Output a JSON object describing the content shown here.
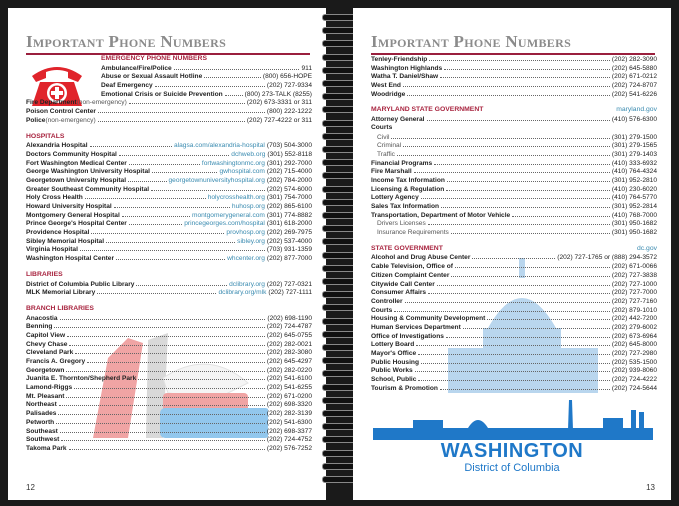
{
  "left_page": {
    "title": "Important Phone Numbers",
    "page_number": "12",
    "sections": [
      {
        "header": "EMERGENCY PHONE NUMBERS",
        "indent_rows": 4,
        "rows": [
          {
            "name": "Ambulance/Fire/Police",
            "phone": "911"
          },
          {
            "name": "Abuse or Sexual Assault Hotline",
            "phone": "(800) 656-HOPE"
          },
          {
            "name": "Deaf Emergency",
            "phone": "(202) 727-9334"
          },
          {
            "name": "Emotional Crisis or Suicide Prevention",
            "phone": "(800) 273-TALK (8255)"
          },
          {
            "name": "Fire Department",
            "sub": " (non-emergency)",
            "phone": "(202) 673-3331 or 311"
          },
          {
            "name": "Poison Control Center",
            "phone": "(800) 222-1222"
          },
          {
            "name": "Police",
            "sub": " (non-emergency)",
            "phone": "(202) 727-4222 or 311"
          }
        ]
      },
      {
        "header": "HOSPITALS",
        "rows": [
          {
            "name": "Alexandria Hospital",
            "url": "alagsa.com/alexandria-hospital",
            "phone": "(703) 504-3000"
          },
          {
            "name": "Doctors Community Hospital",
            "url": "dchweb.org",
            "phone": "(301) 552-8118"
          },
          {
            "name": "Fort Washington Medical Center",
            "url": "fortwashingtonmc.org",
            "phone": "(301) 292-7000"
          },
          {
            "name": "George Washington University Hospital",
            "url": "gwhospital.com",
            "phone": "(202) 715-4000"
          },
          {
            "name": "Georgetown University Hospital",
            "url": "georgetownuniversityhospital.org",
            "phone": "(202) 784-2000"
          },
          {
            "name": "Greater Southeast Community Hospital",
            "phone": "(202) 574-6000"
          },
          {
            "name": "Holy Cross Health",
            "url": "holycrosshealth.org",
            "phone": "(301) 754-7000"
          },
          {
            "name": "Howard University Hospital",
            "url": "huhosp.org",
            "phone": "(202) 865-6100"
          },
          {
            "name": "Montgomery General Hospital",
            "url": "montgomerygeneral.com",
            "phone": "(301) 774-8882"
          },
          {
            "name": "Prince George's Hospital Center",
            "url": "princegeorges.com/hospital",
            "phone": "(301) 618-2000"
          },
          {
            "name": "Providence Hospital",
            "url": "provhosp.org",
            "phone": "(202) 269-7975"
          },
          {
            "name": "Sibley Memorial Hospital",
            "url": "sibley.org",
            "phone": "(202) 537-4000"
          },
          {
            "name": "Virginia Hospital",
            "phone": "(703) 931-1359"
          },
          {
            "name": "Washington Hospital Center",
            "url": "whcenter.org",
            "phone": "(202) 877-7000"
          }
        ]
      },
      {
        "header": "LIBRARIES",
        "rows": [
          {
            "name": "District of Columbia Public Library",
            "url": "dclibrary.org",
            "phone": "(202) 727-0321"
          },
          {
            "name": "MLK Memorial Library",
            "url": "dclibrary.org/mlk",
            "phone": "(202) 727-1111"
          }
        ]
      },
      {
        "header": "BRANCH LIBRARIES",
        "rows": [
          {
            "name": "Anacostia",
            "phone": "(202) 698-1190"
          },
          {
            "name": "Benning",
            "phone": "(202) 724-4787"
          },
          {
            "name": "Capitol View",
            "phone": "(202) 645-0755"
          },
          {
            "name": "Chevy Chase",
            "phone": "(202) 282-0021"
          },
          {
            "name": "Cleveland Park",
            "phone": "(202) 282-3080"
          },
          {
            "name": "Francis A. Gregory",
            "phone": "(202) 645-4297"
          },
          {
            "name": "Georgetown",
            "phone": "(202) 282-0220"
          },
          {
            "name": "Juanita E. Thornton/Shepherd Park",
            "phone": "(202) 541-6100"
          },
          {
            "name": "Lamond-Riggs",
            "phone": "(202) 541-6255"
          },
          {
            "name": "Mt. Pleasant",
            "phone": "(202) 671-0200"
          },
          {
            "name": "Northeast",
            "phone": "(202) 698-3320"
          },
          {
            "name": "Palisades",
            "phone": "(202) 282-3139"
          },
          {
            "name": "Petworth",
            "phone": "(202) 541-6300"
          },
          {
            "name": "Southeast",
            "phone": "(202) 698-3377"
          },
          {
            "name": "Southwest",
            "phone": "(202) 724-4752"
          },
          {
            "name": "Takoma Park",
            "phone": "(202) 576-7252"
          }
        ]
      }
    ]
  },
  "right_page": {
    "title": "Important Phone Numbers",
    "page_number": "13",
    "logo": {
      "line1": "WASHINGTON",
      "line2": "District of Columbia"
    },
    "sections": [
      {
        "rows": [
          {
            "name": "Tenley-Friendship",
            "phone": "(202) 282-3090"
          },
          {
            "name": "Washington Highlands",
            "phone": "(202) 645-5880"
          },
          {
            "name": "Watha T. Daniel/Shaw",
            "phone": "(202) 671-0212"
          },
          {
            "name": "West End",
            "phone": "(202) 724-8707"
          },
          {
            "name": "Woodridge",
            "phone": "(202) 541-6226"
          }
        ]
      },
      {
        "header": "MARYLAND STATE GOVERNMENT",
        "header_url": "maryland.gov",
        "rows": [
          {
            "name": "Attorney General",
            "phone": "(410) 576-6300"
          },
          {
            "name": "Courts",
            "heading": true
          },
          {
            "name": "Civil",
            "indent": true,
            "phone": "(301) 279-1500"
          },
          {
            "name": "Criminal",
            "indent": true,
            "phone": "(301) 279-1565"
          },
          {
            "name": "Traffic",
            "indent": true,
            "phone": "(301) 279-1403"
          },
          {
            "name": "Financial Programs",
            "phone": "(410) 333-6932"
          },
          {
            "name": "Fire Marshall",
            "phone": "(410) 764-4324"
          },
          {
            "name": "Income Tax Information",
            "phone": "(301) 952-2810"
          },
          {
            "name": "Licensing & Regulation",
            "phone": "(410) 230-6020"
          },
          {
            "name": "Lottery Agency",
            "phone": "(410) 764-5770"
          },
          {
            "name": "Sales Tax Information",
            "phone": "(301) 952-2814"
          },
          {
            "name": "Transportation, Department of Motor Vehicle",
            "phone": "(410) 768-7000"
          },
          {
            "name": "Drivers Licenses",
            "indent": true,
            "phone": "(301) 950-1682"
          },
          {
            "name": "Insurance Requirements",
            "indent": true,
            "phone": "(301) 950-1682"
          }
        ]
      },
      {
        "header": "STATE GOVERNMENT",
        "header_url": "dc.gov",
        "rows": [
          {
            "name": "Alcohol and Drug Abuse Center",
            "phone": "(202) 727-1765 or (888) 294-3572"
          },
          {
            "name": "Cable Television, Office of",
            "phone": "(202) 671-0066"
          },
          {
            "name": "Citizen Complaint Center",
            "phone": "(202) 727-3838"
          },
          {
            "name": "Citywide Call Center",
            "phone": "(202) 727-1000"
          },
          {
            "name": "Consumer Affairs",
            "phone": "(202) 727-7000"
          },
          {
            "name": "Controller",
            "phone": "(202) 727-7160"
          },
          {
            "name": "Courts",
            "phone": "(202) 879-1010"
          },
          {
            "name": "Housing & Community Development",
            "phone": "(202) 442-7200"
          },
          {
            "name": "Human Services Department",
            "phone": "(202) 279-6002"
          },
          {
            "name": "Office of Investigations",
            "phone": "(202) 673-6964"
          },
          {
            "name": "Lottery Board",
            "phone": "(202) 645-8000"
          },
          {
            "name": "Mayor's Office",
            "phone": "(202) 727-2980"
          },
          {
            "name": "Public Housing",
            "phone": "(202) 535-1500"
          },
          {
            "name": "Public Works",
            "phone": "(202) 939-8060"
          },
          {
            "name": "School, Public",
            "phone": "(202) 724-4222"
          },
          {
            "name": "Tourism & Promotion",
            "phone": "(202) 724-5644"
          }
        ]
      }
    ]
  },
  "colors": {
    "accent": "#a8243f",
    "link": "#3a8bb0",
    "title": "#8b8b8b",
    "logo": "#1f78c8"
  }
}
